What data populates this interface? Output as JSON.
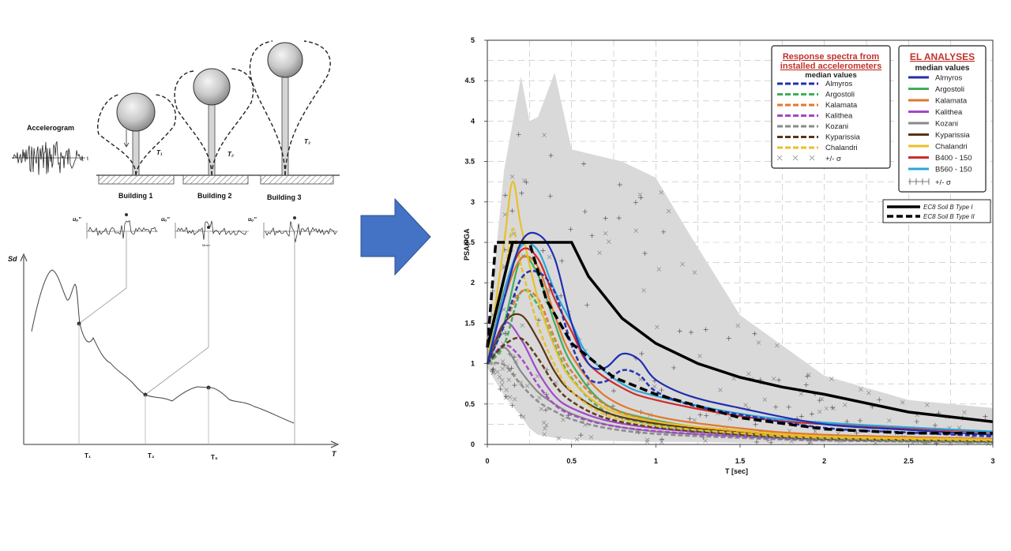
{
  "left": {
    "accelerogram_label": "Accelerogram",
    "buildings": [
      {
        "label": "Building 1",
        "period": "T₁"
      },
      {
        "label": "Building 2",
        "period": "T₂"
      },
      {
        "label": "Building 3",
        "period": "T₃"
      }
    ],
    "response_label": "uₒ''",
    "response_small_text": "Mmm",
    "sd_axis_label": "Sd",
    "t_axis_label": "T",
    "t_ticks": [
      "T₁",
      "T₂",
      "T₃"
    ]
  },
  "arrow_color": "#4472c4",
  "chart_data": {
    "type": "line",
    "xlabel": "T  [sec]",
    "ylabel": "PSA/PGA",
    "xlim": [
      0,
      3
    ],
    "ylim": [
      0,
      5
    ],
    "xticks": [
      "0",
      "0.5",
      "1",
      "1.5",
      "2",
      "2.5",
      "3"
    ],
    "yticks": [
      "0",
      "0.5",
      "1",
      "1.5",
      "2",
      "2.5",
      "3",
      "3.5",
      "4",
      "4.5",
      "5"
    ],
    "grid": true,
    "legend_installed": {
      "title_line1": "Response spectra from",
      "title_line2": "installed accelerometers",
      "subtitle": "median values",
      "entries": [
        "Almyros",
        "Argostoli",
        "Kalamata",
        "Kalithea",
        "Kozani",
        "Kyparissia",
        "Chalandri"
      ],
      "sigma": "+/- σ"
    },
    "legend_el": {
      "title": "EL ANALYSES",
      "subtitle": "median values",
      "entries": [
        "Almyros",
        "Argostoli",
        "Kalamata",
        "Kalithea",
        "Kozani",
        "Kyparissia",
        "Chalandri",
        "B400 - 150",
        "B560 - 150"
      ],
      "sigma": "+/- σ"
    },
    "legend_ec8": {
      "entries": [
        "EC8 Soil B Type I",
        "EC8 Soil B Type II"
      ]
    },
    "colors": {
      "Almyros": "#1f2fb0",
      "Argostoli": "#3fae5a",
      "Kalamata": "#e0782e",
      "Kalithea": "#a247c9",
      "Kozani": "#8a8a8a",
      "Kyparissia": "#5b3416",
      "Chalandri": "#e8c02a",
      "B400 - 150": "#d02a2a",
      "B560 - 150": "#2aa6d8",
      "EC8": "#000000",
      "band": "#d9d9d9"
    },
    "series": [
      {
        "name": "EC8 Soil B Type I",
        "x": [
          0,
          0.15,
          0.5,
          0.6,
          0.8,
          1,
          1.25,
          1.5,
          1.75,
          2,
          2.5,
          3
        ],
        "y": [
          1.2,
          2.5,
          2.5,
          2.08,
          1.56,
          1.25,
          1.0,
          0.83,
          0.71,
          0.62,
          0.4,
          0.28
        ]
      },
      {
        "name": "EC8 Soil B Type II",
        "x": [
          0,
          0.05,
          0.25,
          0.35,
          0.5,
          0.75,
          1,
          1.5,
          2,
          2.5,
          3
        ],
        "y": [
          1.2,
          2.5,
          2.5,
          1.79,
          1.25,
          0.83,
          0.62,
          0.33,
          0.19,
          0.14,
          0.14
        ]
      },
      {
        "name": "Almyros",
        "x": [
          0,
          0.1,
          0.2,
          0.3,
          0.4,
          0.5,
          0.6,
          0.7,
          0.8,
          0.9,
          1,
          1.2,
          1.5,
          2,
          2.5,
          3
        ],
        "y": [
          1.0,
          1.8,
          2.5,
          2.6,
          2.3,
          1.5,
          1.0,
          0.95,
          1.12,
          1.05,
          0.8,
          0.6,
          0.45,
          0.25,
          0.18,
          0.12
        ]
      },
      {
        "name": "B400 - 150",
        "x": [
          0,
          0.1,
          0.2,
          0.3,
          0.4,
          0.5,
          0.6,
          0.8,
          1,
          1.5,
          2,
          3
        ],
        "y": [
          1.0,
          1.9,
          2.4,
          2.3,
          1.8,
          1.4,
          1.0,
          0.7,
          0.55,
          0.35,
          0.25,
          0.15
        ]
      },
      {
        "name": "B560 - 150",
        "x": [
          0,
          0.1,
          0.2,
          0.3,
          0.4,
          0.5,
          0.6,
          0.8,
          1,
          1.5,
          2,
          3
        ],
        "y": [
          1.0,
          1.9,
          2.45,
          2.4,
          1.9,
          1.5,
          1.1,
          0.75,
          0.6,
          0.38,
          0.27,
          0.16
        ]
      },
      {
        "name": "Argostoli",
        "x": [
          0,
          0.1,
          0.2,
          0.3,
          0.4,
          0.5,
          0.7,
          1,
          1.5,
          2,
          3
        ],
        "y": [
          1.0,
          1.5,
          2.3,
          2.1,
          1.5,
          1.0,
          0.5,
          0.3,
          0.15,
          0.08,
          0.04
        ]
      },
      {
        "name": "Kalamata",
        "x": [
          0,
          0.1,
          0.2,
          0.3,
          0.4,
          0.5,
          0.7,
          1,
          1.5,
          2,
          3
        ],
        "y": [
          1.0,
          1.8,
          2.3,
          2.2,
          1.6,
          1.1,
          0.6,
          0.35,
          0.2,
          0.12,
          0.07
        ]
      },
      {
        "name": "Kalithea",
        "x": [
          0,
          0.1,
          0.2,
          0.3,
          0.4,
          0.5,
          0.7,
          1,
          1.5,
          2,
          3
        ],
        "y": [
          1.0,
          1.5,
          1.3,
          0.9,
          0.6,
          0.45,
          0.3,
          0.2,
          0.12,
          0.07,
          0.04
        ]
      },
      {
        "name": "Kozani",
        "x": [
          0,
          0.1,
          0.2,
          0.3,
          0.4,
          0.5,
          0.7,
          1,
          1.5,
          2,
          3
        ],
        "y": [
          1.0,
          1.2,
          0.9,
          0.65,
          0.5,
          0.38,
          0.25,
          0.16,
          0.1,
          0.06,
          0.03
        ]
      },
      {
        "name": "Kyparissia",
        "x": [
          0,
          0.1,
          0.2,
          0.3,
          0.4,
          0.5,
          0.7,
          1,
          1.5,
          2,
          3
        ],
        "y": [
          1.0,
          1.5,
          1.6,
          1.3,
          0.9,
          0.65,
          0.4,
          0.26,
          0.15,
          0.09,
          0.05
        ]
      },
      {
        "name": "Chalandri",
        "x": [
          0,
          0.1,
          0.15,
          0.2,
          0.3,
          0.4,
          0.5,
          0.7,
          1,
          1.5,
          2,
          3
        ],
        "y": [
          1.0,
          2.5,
          3.25,
          2.7,
          1.8,
          1.2,
          0.8,
          0.45,
          0.28,
          0.17,
          0.1,
          0.06
        ]
      }
    ],
    "sigma_band": {
      "x": [
        0,
        0.1,
        0.2,
        0.25,
        0.3,
        0.4,
        0.5,
        0.6,
        0.8,
        1,
        1.2,
        1.5,
        2,
        2.5,
        3
      ],
      "upper": [
        1.3,
        3.4,
        4.55,
        4.0,
        4.05,
        4.6,
        3.65,
        3.6,
        3.5,
        3.3,
        2.6,
        1.6,
        0.85,
        0.55,
        0.45
      ],
      "lower": [
        0.95,
        0.6,
        0.35,
        0.2,
        0.12,
        0.08,
        0.06,
        0.05,
        0.04,
        0.03,
        0.03,
        0.02,
        0.02,
        0.01,
        0.01
      ]
    }
  }
}
